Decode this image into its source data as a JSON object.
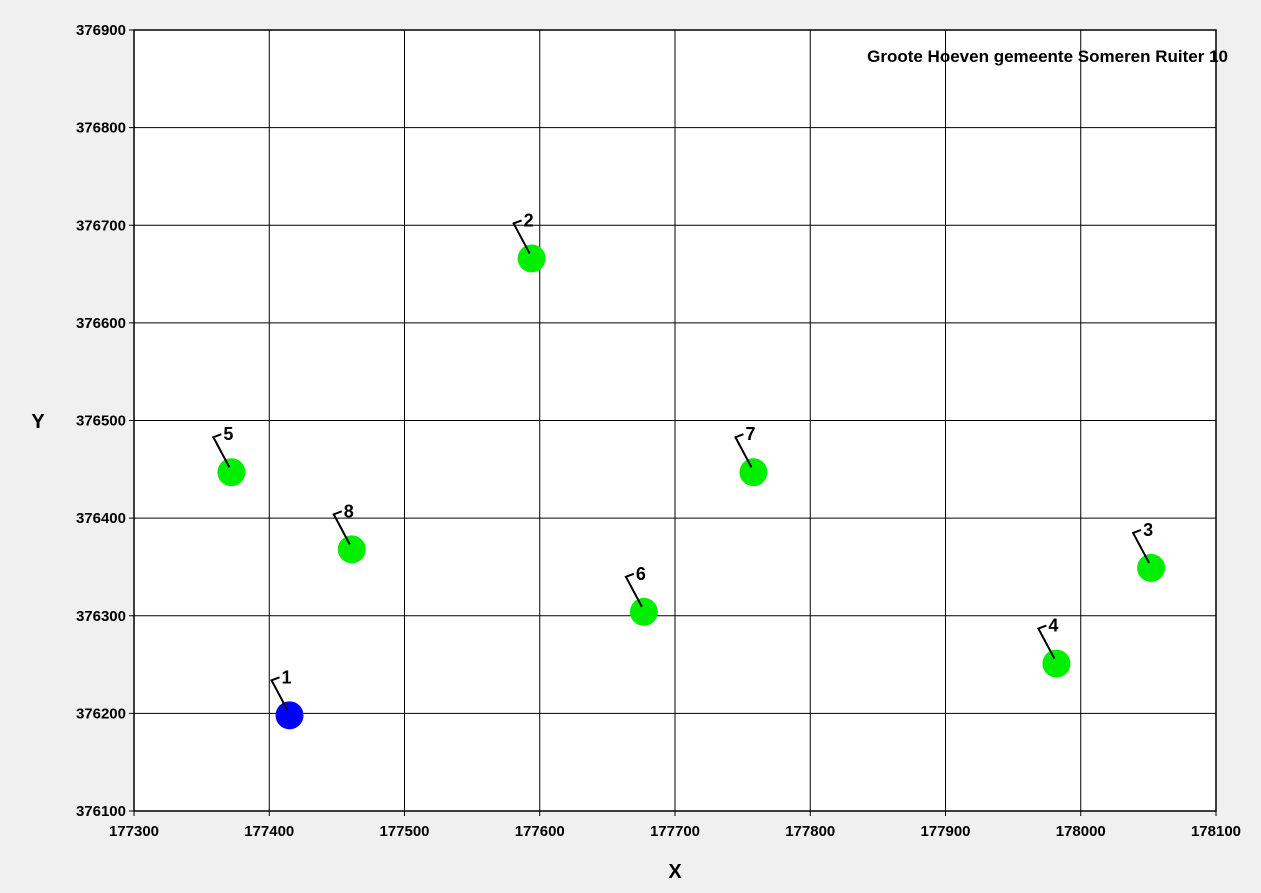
{
  "chart_data": {
    "type": "scatter",
    "title": "Groote Hoeven gemeente Someren Ruiter 10",
    "xlabel": "X",
    "ylabel": "Y",
    "xlim": [
      177300,
      178100
    ],
    "ylim": [
      376100,
      376900
    ],
    "xticks": [
      "177300",
      "177400",
      "177500",
      "177600",
      "177700",
      "177800",
      "177900",
      "178000",
      "178100"
    ],
    "yticks": [
      "376100",
      "376200",
      "376300",
      "376400",
      "376500",
      "376600",
      "376700",
      "376800",
      "376900"
    ],
    "grid": true,
    "points": [
      {
        "label": "1",
        "x": 177415,
        "y": 376198,
        "color": "#0000ff"
      },
      {
        "label": "2",
        "x": 177594,
        "y": 376666,
        "color": "#00ee00"
      },
      {
        "label": "3",
        "x": 178052,
        "y": 376349,
        "color": "#00ee00"
      },
      {
        "label": "4",
        "x": 177982,
        "y": 376251,
        "color": "#00ee00"
      },
      {
        "label": "5",
        "x": 177372,
        "y": 376447,
        "color": "#00ee00"
      },
      {
        "label": "6",
        "x": 177677,
        "y": 376304,
        "color": "#00ee00"
      },
      {
        "label": "7",
        "x": 177758,
        "y": 376447,
        "color": "#00ee00"
      },
      {
        "label": "8",
        "x": 177461,
        "y": 376368,
        "color": "#00ee00"
      }
    ]
  }
}
